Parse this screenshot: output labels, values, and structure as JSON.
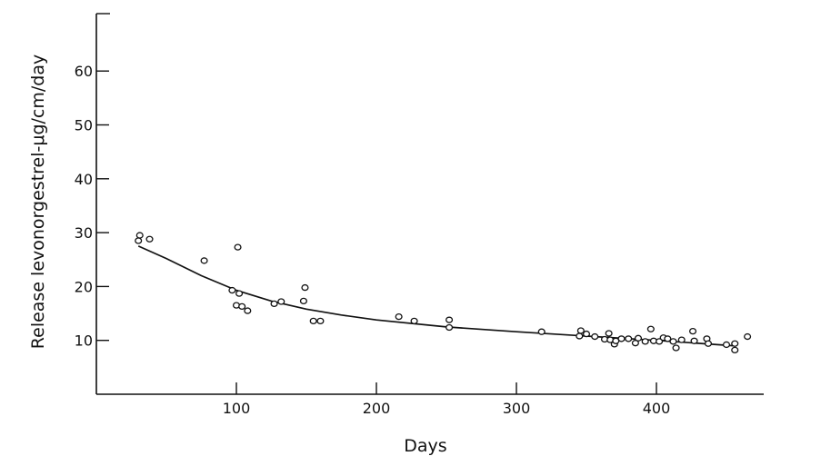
{
  "chart_data": {
    "type": "scatter",
    "title": "",
    "xlabel": "Days",
    "ylabel": "Release levonorgestrel-μg/cm/day",
    "xlim": [
      0,
      470
    ],
    "ylim": [
      0,
      70
    ],
    "x_ticks": [
      100,
      200,
      300,
      400
    ],
    "y_ticks": [
      10,
      20,
      30,
      40,
      50,
      60
    ],
    "grid": false,
    "legend": "none",
    "points": [
      {
        "x": 30,
        "y": 28.5
      },
      {
        "x": 31,
        "y": 29.5
      },
      {
        "x": 38,
        "y": 28.8
      },
      {
        "x": 77,
        "y": 24.8
      },
      {
        "x": 97,
        "y": 19.3
      },
      {
        "x": 100,
        "y": 16.5
      },
      {
        "x": 101,
        "y": 27.3
      },
      {
        "x": 102,
        "y": 18.7
      },
      {
        "x": 104,
        "y": 16.3
      },
      {
        "x": 108,
        "y": 15.5
      },
      {
        "x": 127,
        "y": 16.8
      },
      {
        "x": 132,
        "y": 17.2
      },
      {
        "x": 148,
        "y": 17.3
      },
      {
        "x": 149,
        "y": 19.8
      },
      {
        "x": 155,
        "y": 13.6
      },
      {
        "x": 160,
        "y": 13.6
      },
      {
        "x": 216,
        "y": 14.4
      },
      {
        "x": 227,
        "y": 13.6
      },
      {
        "x": 252,
        "y": 13.8
      },
      {
        "x": 252,
        "y": 12.4
      },
      {
        "x": 318,
        "y": 11.6
      },
      {
        "x": 345,
        "y": 10.8
      },
      {
        "x": 346,
        "y": 11.8
      },
      {
        "x": 350,
        "y": 11.2
      },
      {
        "x": 356,
        "y": 10.7
      },
      {
        "x": 363,
        "y": 10.2
      },
      {
        "x": 366,
        "y": 11.3
      },
      {
        "x": 367,
        "y": 10.1
      },
      {
        "x": 370,
        "y": 9.3
      },
      {
        "x": 371,
        "y": 9.9
      },
      {
        "x": 375,
        "y": 10.3
      },
      {
        "x": 380,
        "y": 10.3
      },
      {
        "x": 385,
        "y": 9.5
      },
      {
        "x": 387,
        "y": 10.4
      },
      {
        "x": 392,
        "y": 9.8
      },
      {
        "x": 396,
        "y": 12.1
      },
      {
        "x": 398,
        "y": 9.9
      },
      {
        "x": 402,
        "y": 9.8
      },
      {
        "x": 405,
        "y": 10.5
      },
      {
        "x": 408,
        "y": 10.3
      },
      {
        "x": 412,
        "y": 9.8
      },
      {
        "x": 414,
        "y": 8.6
      },
      {
        "x": 418,
        "y": 10.1
      },
      {
        "x": 426,
        "y": 11.7
      },
      {
        "x": 427,
        "y": 9.9
      },
      {
        "x": 436,
        "y": 10.3
      },
      {
        "x": 437,
        "y": 9.4
      },
      {
        "x": 450,
        "y": 9.2
      },
      {
        "x": 456,
        "y": 8.2
      },
      {
        "x": 456,
        "y": 9.4
      },
      {
        "x": 465,
        "y": 10.7
      }
    ],
    "trend_line": {
      "x": [
        30,
        50,
        75,
        100,
        125,
        150,
        175,
        200,
        250,
        300,
        350,
        400,
        455
      ],
      "y": [
        27.5,
        25.2,
        22.0,
        19.3,
        17.3,
        15.8,
        14.7,
        13.8,
        12.5,
        11.6,
        10.8,
        10.0,
        9.0
      ]
    }
  }
}
